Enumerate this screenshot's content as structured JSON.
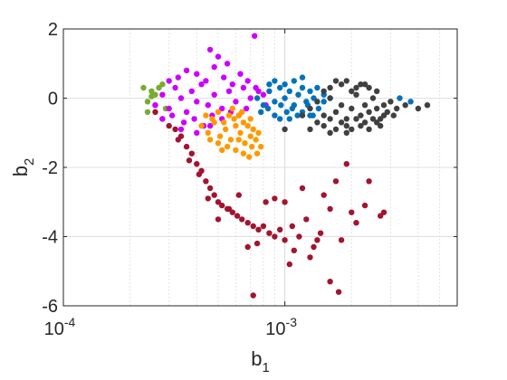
{
  "chart_data": {
    "type": "scatter",
    "title": "",
    "xlabel": "b",
    "xlabel_sub": "1",
    "ylabel": "b",
    "ylabel_sub": "2",
    "xscale": "log",
    "xlim": [
      0.0001,
      0.006
    ],
    "ylim": [
      -6,
      2
    ],
    "x_ticks": [
      {
        "base": "10",
        "exp": "-4"
      },
      {
        "base": "10",
        "exp": "-3"
      }
    ],
    "y_ticks": [
      "2",
      "0",
      "-2",
      "-4",
      "-6"
    ],
    "grid": true,
    "legend": "none",
    "series": [
      {
        "color": "#A2142F",
        "x": [
          0.00026,
          0.00028,
          0.0003,
          0.00032,
          0.00034,
          0.00036,
          0.00038,
          0.0004,
          0.00042,
          0.00044,
          0.00046,
          0.00048,
          0.0005,
          0.00052,
          0.00055,
          0.00058,
          0.00061,
          0.00064,
          0.00068,
          0.00072,
          0.00076,
          0.0008,
          0.00085,
          0.0009,
          0.00095,
          0.001,
          0.00108,
          0.00116,
          0.00125,
          0.00135,
          0.00145,
          0.0016,
          0.0018,
          0.002,
          0.0023,
          0.0027,
          0.00033,
          0.00037,
          0.00041,
          0.00045,
          0.0005,
          0.00056,
          0.00062,
          0.00068,
          0.00075,
          0.00082,
          0.0009,
          0.001,
          0.0011,
          0.0012,
          0.0013,
          0.0015,
          0.0017,
          0.0016,
          0.0019,
          0.0021,
          0.00072,
          0.00105,
          0.0014,
          0.00175,
          0.0024,
          0.0028
        ],
        "y": [
          -0.4,
          -0.6,
          -0.8,
          -0.9,
          -1.1,
          -1.4,
          -1.6,
          -1.9,
          -2.1,
          -2.4,
          -2.6,
          -2.8,
          -3.0,
          -3.1,
          -3.2,
          -3.3,
          -3.4,
          -3.5,
          -3.6,
          -3.7,
          -3.8,
          -3.7,
          -3.9,
          -4.0,
          -3.8,
          -4.1,
          -3.7,
          -4.0,
          -3.5,
          -4.3,
          -3.9,
          -3.2,
          -4.1,
          -3.3,
          -3.1,
          -3.4,
          -1.2,
          -1.8,
          -2.2,
          -2.9,
          -3.5,
          -3.2,
          -2.8,
          -4.3,
          -4.2,
          -3.0,
          -2.9,
          -3.0,
          -4.4,
          -2.6,
          -4.6,
          -2.8,
          -2.4,
          -5.3,
          -1.9,
          -3.6,
          -5.7,
          -4.8,
          -4.1,
          -5.6,
          -2.4,
          -3.3
        ]
      },
      {
        "color": "#77AC30",
        "x": [
          0.00023,
          0.00024,
          0.00025,
          0.00026,
          0.00027,
          0.00028,
          0.00024,
          0.00026,
          0.00029,
          0.00025
        ],
        "y": [
          0.3,
          -0.1,
          0.2,
          0.1,
          0.3,
          0.4,
          -0.4,
          -0.2,
          -0.3,
          0.05
        ]
      },
      {
        "color": "#CC00FF",
        "x": [
          0.00026,
          0.00028,
          0.0003,
          0.00032,
          0.00034,
          0.00036,
          0.00038,
          0.0004,
          0.00042,
          0.00045,
          0.00048,
          0.00052,
          0.00056,
          0.0006,
          0.00065,
          0.0007,
          0.00076,
          0.00082,
          0.0003,
          0.00033,
          0.00036,
          0.0004,
          0.00044,
          0.00048,
          0.00053,
          0.00058,
          0.00063,
          0.00068,
          0.00074,
          0.0008,
          0.00028,
          0.00031,
          0.00035,
          0.00039,
          0.00043,
          0.00047,
          0.00052,
          0.00057,
          0.00062,
          0.00067,
          0.0005,
          0.00055,
          0.00034,
          0.0004,
          0.00046,
          0.00073,
          0.00046
        ],
        "y": [
          -0.2,
          0.1,
          -0.3,
          0.3,
          0.0,
          -0.4,
          0.2,
          -0.1,
          0.4,
          -0.2,
          0.1,
          -0.3,
          0.2,
          -0.1,
          0.3,
          0.0,
          0.2,
          -0.2,
          0.5,
          0.6,
          0.8,
          0.7,
          0.5,
          0.9,
          0.6,
          0.4,
          0.7,
          0.5,
          0.3,
          0.1,
          -0.6,
          -0.5,
          -0.7,
          -0.6,
          -0.8,
          -0.5,
          -0.6,
          -0.4,
          -0.5,
          -0.3,
          1.2,
          1.0,
          -0.9,
          -1.0,
          -0.8,
          1.8,
          1.4
        ]
      },
      {
        "color": "#FF9900",
        "x": [
          0.00042,
          0.00045,
          0.00048,
          0.00051,
          0.00054,
          0.00057,
          0.0006,
          0.00063,
          0.00066,
          0.0007,
          0.00074,
          0.00078,
          0.00044,
          0.00047,
          0.0005,
          0.00053,
          0.00056,
          0.00059,
          0.00062,
          0.00065,
          0.00068,
          0.00072,
          0.00076,
          0.0005,
          0.00055,
          0.0006,
          0.00065,
          0.00071,
          0.00058,
          0.00064,
          0.0007,
          0.00075,
          0.00046,
          0.00052,
          0.00062,
          0.00069
        ],
        "y": [
          -0.8,
          -1.0,
          -0.7,
          -1.1,
          -0.9,
          -1.2,
          -0.8,
          -1.0,
          -1.3,
          -1.1,
          -1.2,
          -1.4,
          -0.5,
          -0.6,
          -0.4,
          -0.7,
          -0.5,
          -0.6,
          -0.5,
          -0.7,
          -0.8,
          -0.9,
          -1.0,
          -1.3,
          -1.4,
          -1.5,
          -1.6,
          -1.4,
          -0.3,
          -0.4,
          -0.6,
          -1.6,
          -1.2,
          -1.5,
          -1.2,
          -1.7
        ]
      },
      {
        "color": "#0072BD",
        "x": [
          0.00075,
          0.0008,
          0.00085,
          0.0009,
          0.00095,
          0.001,
          0.00105,
          0.0011,
          0.00115,
          0.0012,
          0.00125,
          0.0013,
          0.00135,
          0.0014,
          0.0015,
          0.00078,
          0.00084,
          0.0009,
          0.00096,
          0.00102,
          0.00108,
          0.00114,
          0.0012,
          0.00127,
          0.00134,
          0.00142,
          0.0015,
          0.0016,
          0.0009,
          0.001,
          0.0011,
          0.0012,
          0.00085,
          0.00095,
          0.00105,
          0.0013,
          0.0033,
          0.0037
        ],
        "y": [
          0.0,
          -0.2,
          0.2,
          -0.1,
          0.3,
          0.0,
          0.2,
          -0.2,
          0.1,
          0.3,
          -0.1,
          0.2,
          0.0,
          0.3,
          0.1,
          -0.4,
          -0.3,
          -0.5,
          -0.2,
          -0.4,
          -0.3,
          -0.5,
          -0.4,
          -0.2,
          -0.5,
          -0.3,
          -0.1,
          0.0,
          0.5,
          0.4,
          0.5,
          0.6,
          0.4,
          -0.6,
          -0.6,
          -0.5,
          0.0,
          -0.1
        ]
      },
      {
        "color": "#404040",
        "x": [
          0.0013,
          0.0014,
          0.0015,
          0.0016,
          0.0017,
          0.0018,
          0.0019,
          0.002,
          0.0021,
          0.0022,
          0.0023,
          0.0024,
          0.0025,
          0.0026,
          0.0027,
          0.0028,
          0.0029,
          0.003,
          0.0031,
          0.0032,
          0.0014,
          0.0015,
          0.0016,
          0.0017,
          0.0018,
          0.0019,
          0.002,
          0.0021,
          0.0022,
          0.0023,
          0.0024,
          0.0025,
          0.0026,
          0.0027,
          0.0028,
          0.0016,
          0.0018,
          0.002,
          0.0022,
          0.0024,
          0.0026,
          0.0015,
          0.0017,
          0.0019,
          0.0021,
          0.0023,
          0.0012,
          0.0035,
          0.004,
          0.0044,
          0.0019,
          0.0016,
          0.0013,
          0.001
        ],
        "y": [
          -0.3,
          -0.1,
          -0.5,
          0.0,
          -0.4,
          -0.2,
          -0.6,
          -0.3,
          0.1,
          -0.5,
          -0.2,
          -0.4,
          0.0,
          -0.3,
          -0.6,
          -0.2,
          -0.4,
          -0.1,
          -0.5,
          -0.3,
          -0.7,
          -0.8,
          -0.6,
          -0.9,
          -0.7,
          -0.8,
          -0.9,
          -0.6,
          -0.8,
          -0.7,
          -0.9,
          -0.6,
          -0.7,
          -0.8,
          -0.5,
          0.3,
          0.4,
          0.2,
          0.4,
          0.3,
          0.2,
          0.2,
          0.5,
          0.5,
          0.3,
          0.4,
          -0.5,
          -0.2,
          -0.3,
          -0.2,
          -1.0,
          -1.0,
          -0.9,
          -0.9
        ]
      }
    ]
  }
}
